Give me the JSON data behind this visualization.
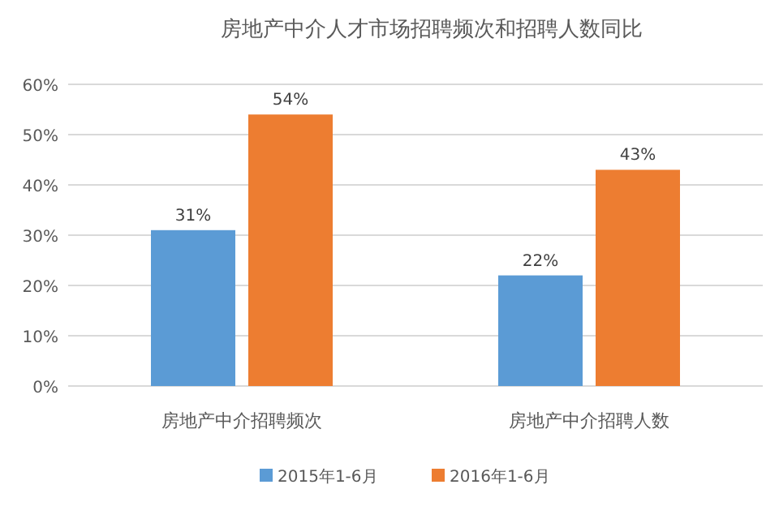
{
  "chart_data": {
    "type": "bar",
    "title": "房地产中介人才市场招聘频次和招聘人数同比",
    "categories": [
      "房地产中介招聘频次",
      "房地产中介招聘人数"
    ],
    "series": [
      {
        "name": "2015年1-6月",
        "color": "#5b9bd5",
        "values": [
          31,
          22
        ],
        "value_labels": [
          "31%",
          "22%"
        ]
      },
      {
        "name": "2016年1-6月",
        "color": "#ed7d31",
        "values": [
          54,
          43
        ],
        "value_labels": [
          "54%",
          "43%"
        ]
      }
    ],
    "ylim": [
      0,
      60
    ],
    "yticks": [
      {
        "value": 0,
        "label": "0%"
      },
      {
        "value": 10,
        "label": "10%"
      },
      {
        "value": 20,
        "label": "20%"
      },
      {
        "value": 30,
        "label": "30%"
      },
      {
        "value": 40,
        "label": "40%"
      },
      {
        "value": 50,
        "label": "50%"
      },
      {
        "value": 60,
        "label": "60%"
      }
    ],
    "grid": "y",
    "legend": "bottom"
  }
}
